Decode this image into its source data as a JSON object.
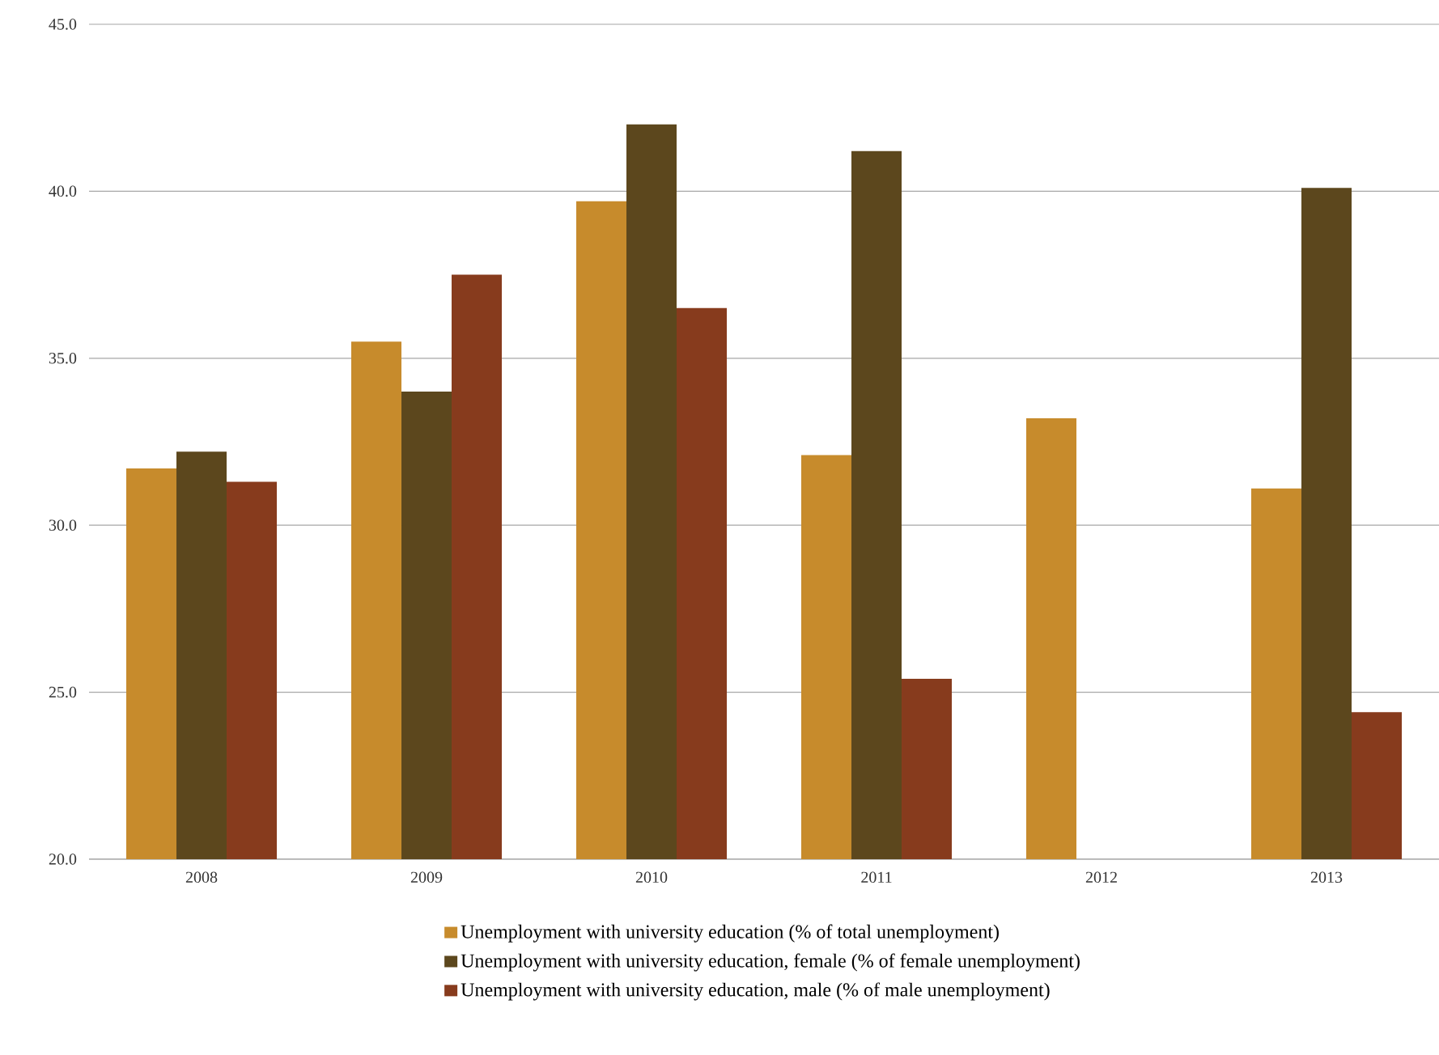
{
  "chart_data": {
    "type": "bar",
    "categories": [
      "2008",
      "2009",
      "2010",
      "2011",
      "2012",
      "2013"
    ],
    "series": [
      {
        "name": "Unemployment with university education (% of total unemployment)",
        "color": "#c78b2c",
        "values": [
          31.7,
          35.5,
          39.7,
          32.1,
          33.2,
          31.1
        ]
      },
      {
        "name": "Unemployment with university education, female (% of female unemployment)",
        "color": "#5c471d",
        "values": [
          32.2,
          34.0,
          42.0,
          41.2,
          null,
          40.1
        ]
      },
      {
        "name": "Unemployment with university education, male (% of male unemployment)",
        "color": "#873b1d",
        "values": [
          31.3,
          37.5,
          36.5,
          25.4,
          null,
          24.4
        ]
      }
    ],
    "ylim": [
      20,
      45
    ],
    "yticks": [
      {
        "value": 20,
        "label": "20.0"
      },
      {
        "value": 25,
        "label": "25.0"
      },
      {
        "value": 30,
        "label": "30.0"
      },
      {
        "value": 35,
        "label": "35.0"
      },
      {
        "value": 40,
        "label": "40.0"
      },
      {
        "value": 45,
        "label": "45.0"
      }
    ],
    "grid": "y",
    "legend": "bottom"
  }
}
